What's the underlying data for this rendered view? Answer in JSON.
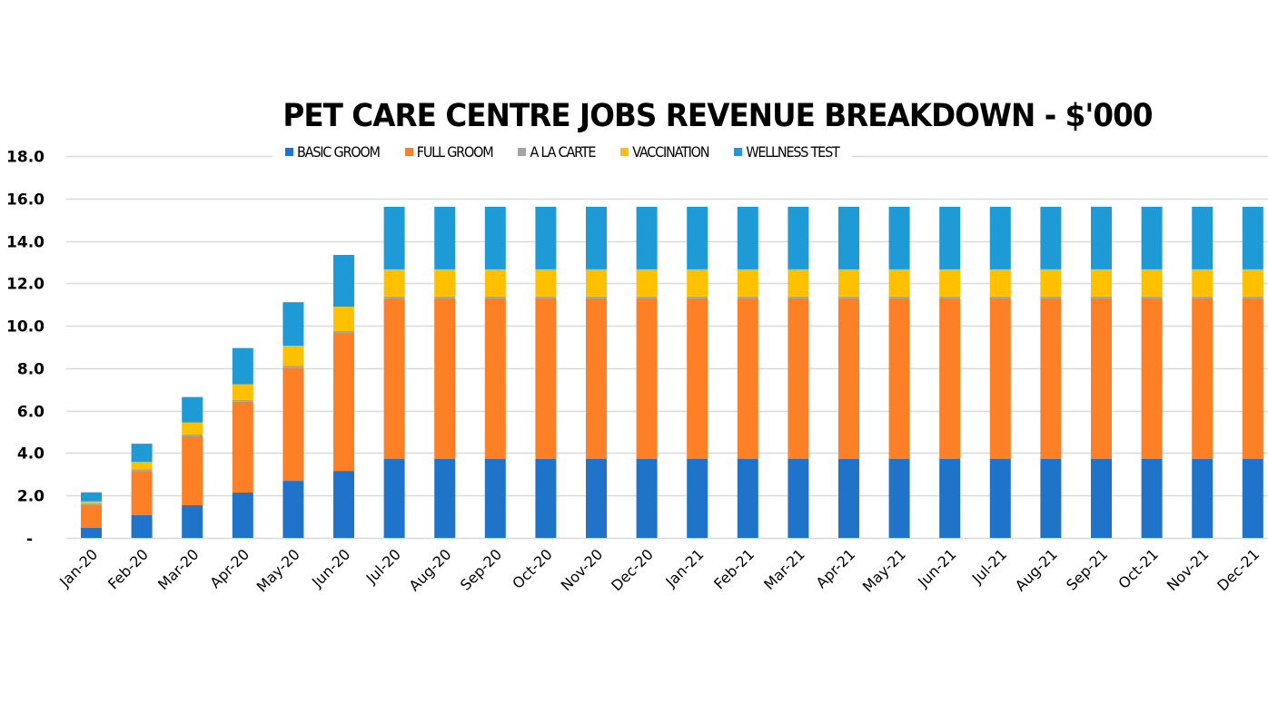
{
  "chart_data": {
    "type": "bar",
    "stacked": true,
    "title": "PET CARE CENTRE JOBS REVENUE BREAKDOWN - $'000",
    "xlabel": "",
    "ylabel": "",
    "ylim": [
      0,
      18
    ],
    "yticks": [
      0,
      2,
      4,
      6,
      8,
      10,
      12,
      14,
      16,
      18
    ],
    "ytick_labels": [
      "-",
      "2.0",
      "4.0",
      "6.0",
      "8.0",
      "10.0",
      "12.0",
      "14.0",
      "16.0",
      "18.0"
    ],
    "grid": true,
    "legend_position": "top",
    "categories": [
      "Jan-20",
      "Feb-20",
      "Mar-20",
      "Apr-20",
      "May-20",
      "Jun-20",
      "Jul-20",
      "Aug-20",
      "Sep-20",
      "Oct-20",
      "Nov-20",
      "Dec-20",
      "Jan-21",
      "Feb-21",
      "Mar-21",
      "Apr-21",
      "May-21",
      "Jun-21",
      "Jul-21",
      "Aug-21",
      "Sep-21",
      "Oct-21",
      "Nov-21",
      "Dec-21"
    ],
    "series": [
      {
        "name": "BASIC GROOM",
        "color": "#1F73C9",
        "values": [
          0.47,
          1.07,
          1.54,
          2.14,
          2.69,
          3.16,
          3.72,
          3.72,
          3.72,
          3.72,
          3.72,
          3.72,
          3.72,
          3.72,
          3.72,
          3.72,
          3.72,
          3.72,
          3.72,
          3.72,
          3.72,
          3.72,
          3.72,
          3.72
        ]
      },
      {
        "name": "FULL GROOM",
        "color": "#FD7F26",
        "values": [
          1.07,
          2.09,
          3.25,
          4.28,
          5.34,
          6.5,
          7.57,
          7.57,
          7.57,
          7.57,
          7.57,
          7.57,
          7.57,
          7.57,
          7.57,
          7.57,
          7.57,
          7.57,
          7.57,
          7.57,
          7.57,
          7.57,
          7.57,
          7.57
        ]
      },
      {
        "name": "A LA CARTE",
        "color": "#A5A5A5",
        "values": [
          0.08,
          0.08,
          0.09,
          0.09,
          0.09,
          0.09,
          0.09,
          0.09,
          0.09,
          0.09,
          0.09,
          0.09,
          0.09,
          0.09,
          0.09,
          0.09,
          0.09,
          0.09,
          0.09,
          0.09,
          0.09,
          0.09,
          0.09,
          0.09
        ]
      },
      {
        "name": "VACCINATION",
        "color": "#FFC000",
        "values": [
          0.1,
          0.34,
          0.56,
          0.73,
          0.94,
          1.15,
          1.28,
          1.28,
          1.28,
          1.28,
          1.28,
          1.28,
          1.28,
          1.28,
          1.28,
          1.28,
          1.28,
          1.28,
          1.28,
          1.28,
          1.28,
          1.28,
          1.28,
          1.28
        ]
      },
      {
        "name": "WELLNESS TEST",
        "color": "#1E9BD7",
        "values": [
          0.43,
          0.86,
          1.2,
          1.71,
          2.05,
          2.44,
          2.95,
          2.95,
          2.95,
          2.95,
          2.95,
          2.95,
          2.95,
          2.95,
          2.95,
          2.95,
          2.95,
          2.95,
          2.95,
          2.95,
          2.95,
          2.95,
          2.95,
          2.95
        ]
      }
    ]
  }
}
